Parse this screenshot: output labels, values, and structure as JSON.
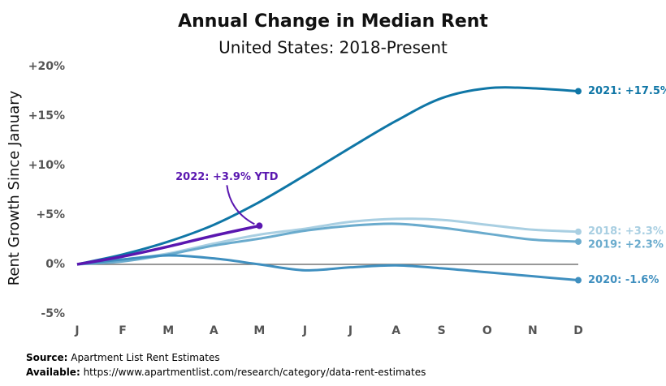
{
  "chart_data": {
    "type": "line",
    "title": "Annual Change in Median Rent",
    "subtitle": "United States: 2018-Present",
    "y_label": "Rent Growth Since January",
    "categories": [
      "J",
      "F",
      "M",
      "A",
      "M",
      "J",
      "J",
      "A",
      "S",
      "O",
      "N",
      "D"
    ],
    "ylim": [
      -5,
      20
    ],
    "yticks": [
      {
        "value": -5,
        "label": "-5%"
      },
      {
        "value": 0,
        "label": "0%"
      },
      {
        "value": 5,
        "label": "+5%"
      },
      {
        "value": 10,
        "label": "+10%"
      },
      {
        "value": 15,
        "label": "+15%"
      },
      {
        "value": 20,
        "label": "+20%"
      }
    ],
    "series": [
      {
        "name": "2018",
        "color": "#a9cfe2",
        "end_label": "2018: +3.3%",
        "values": [
          0,
          0.4,
          1.1,
          2.1,
          3.0,
          3.6,
          4.3,
          4.6,
          4.5,
          4.0,
          3.5,
          3.3
        ]
      },
      {
        "name": "2019",
        "color": "#6aabcd",
        "end_label": "2019: +2.3%",
        "values": [
          0,
          0.3,
          1.0,
          1.9,
          2.6,
          3.4,
          3.9,
          4.1,
          3.7,
          3.1,
          2.5,
          2.3
        ]
      },
      {
        "name": "2020",
        "color": "#3f8fbf",
        "end_label": "2020: -1.6%",
        "values": [
          0,
          0.5,
          0.9,
          0.6,
          0,
          -0.6,
          -0.3,
          -0.1,
          -0.4,
          -0.8,
          -1.2,
          -1.6
        ]
      },
      {
        "name": "2021",
        "color": "#0f76a6",
        "end_label": "2021: +17.5%",
        "values": [
          0,
          1.0,
          2.3,
          4.0,
          6.3,
          9.0,
          11.8,
          14.5,
          16.8,
          17.8,
          17.8,
          17.5
        ]
      },
      {
        "name": "2022",
        "color": "#5a17b0",
        "end_label": "2022: +3.9% YTD",
        "values": [
          0,
          0.8,
          1.8,
          2.9,
          3.9,
          null,
          null,
          null,
          null,
          null,
          null,
          null
        ]
      }
    ],
    "source_label": "Source:",
    "source": "Apartment List Rent Estimates",
    "available_label": "Available:",
    "available": "https://www.apartmentlist.com/research/category/data-rent-estimates"
  }
}
